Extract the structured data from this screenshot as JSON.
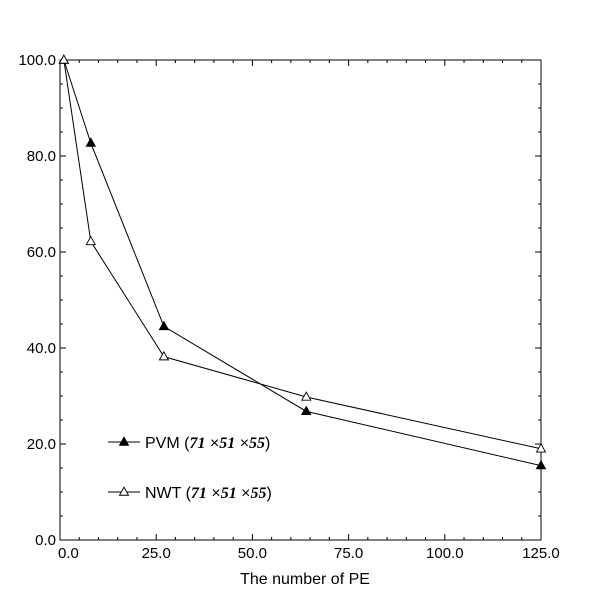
{
  "chart_data": {
    "type": "line",
    "title": "",
    "xlabel": "The number of PE",
    "ylabel": "",
    "xlim": [
      0,
      125
    ],
    "ylim": [
      0,
      100
    ],
    "x_ticks": [
      "0.0",
      "25.0",
      "50.0",
      "75.0",
      "100.0",
      "125.0"
    ],
    "y_ticks": [
      "0.0",
      "20.0",
      "40.0",
      "60.0",
      "80.0",
      "100.0"
    ],
    "grid": false,
    "legend_position": "bottom-left",
    "series": [
      {
        "name": "PVM (71×51×55)",
        "legend": {
          "prefix": "PVM (",
          "dims": [
            "71",
            "51",
            "55"
          ],
          "suffix": ")"
        },
        "marker": "filled-triangle",
        "x": [
          1,
          8,
          27,
          64,
          125
        ],
        "y": [
          100.0,
          82.7,
          44.5,
          26.8,
          15.5
        ]
      },
      {
        "name": "NWT (71×51×55)",
        "legend": {
          "prefix": "NWT (",
          "dims": [
            "71",
            "51",
            "55"
          ],
          "suffix": ")"
        },
        "marker": "open-triangle",
        "x": [
          1,
          8,
          27,
          64,
          125
        ],
        "y": [
          100.0,
          62.2,
          38.2,
          29.8,
          19.0
        ]
      }
    ]
  }
}
